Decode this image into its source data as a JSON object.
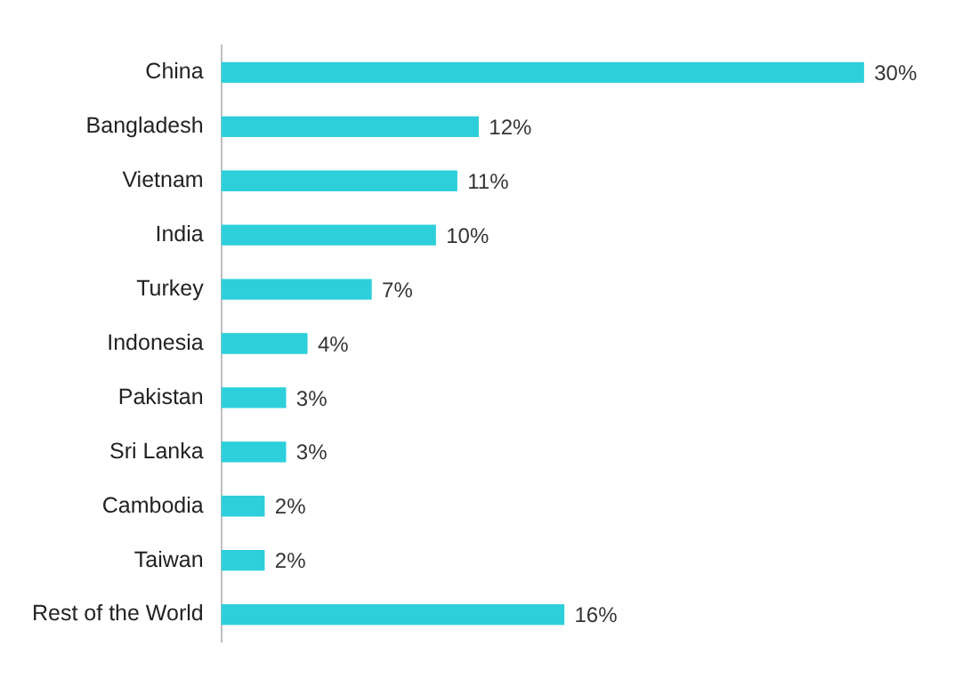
{
  "chart_data": {
    "type": "bar",
    "orientation": "horizontal",
    "categories": [
      "China",
      "Bangladesh",
      "Vietnam",
      "India",
      "Turkey",
      "Indonesia",
      "Pakistan",
      "Sri Lanka",
      "Cambodia",
      "Taiwan",
      "Rest of the World"
    ],
    "values": [
      30,
      12,
      11,
      10,
      7,
      4,
      3,
      3,
      2,
      2,
      16
    ],
    "value_labels": [
      "30%",
      "12%",
      "11%",
      "10%",
      "7%",
      "4%",
      "3%",
      "3%",
      "2%",
      "2%",
      "16%"
    ],
    "color": "#2dcfda",
    "tick_labels": "y",
    "grid": false,
    "legend": false
  }
}
